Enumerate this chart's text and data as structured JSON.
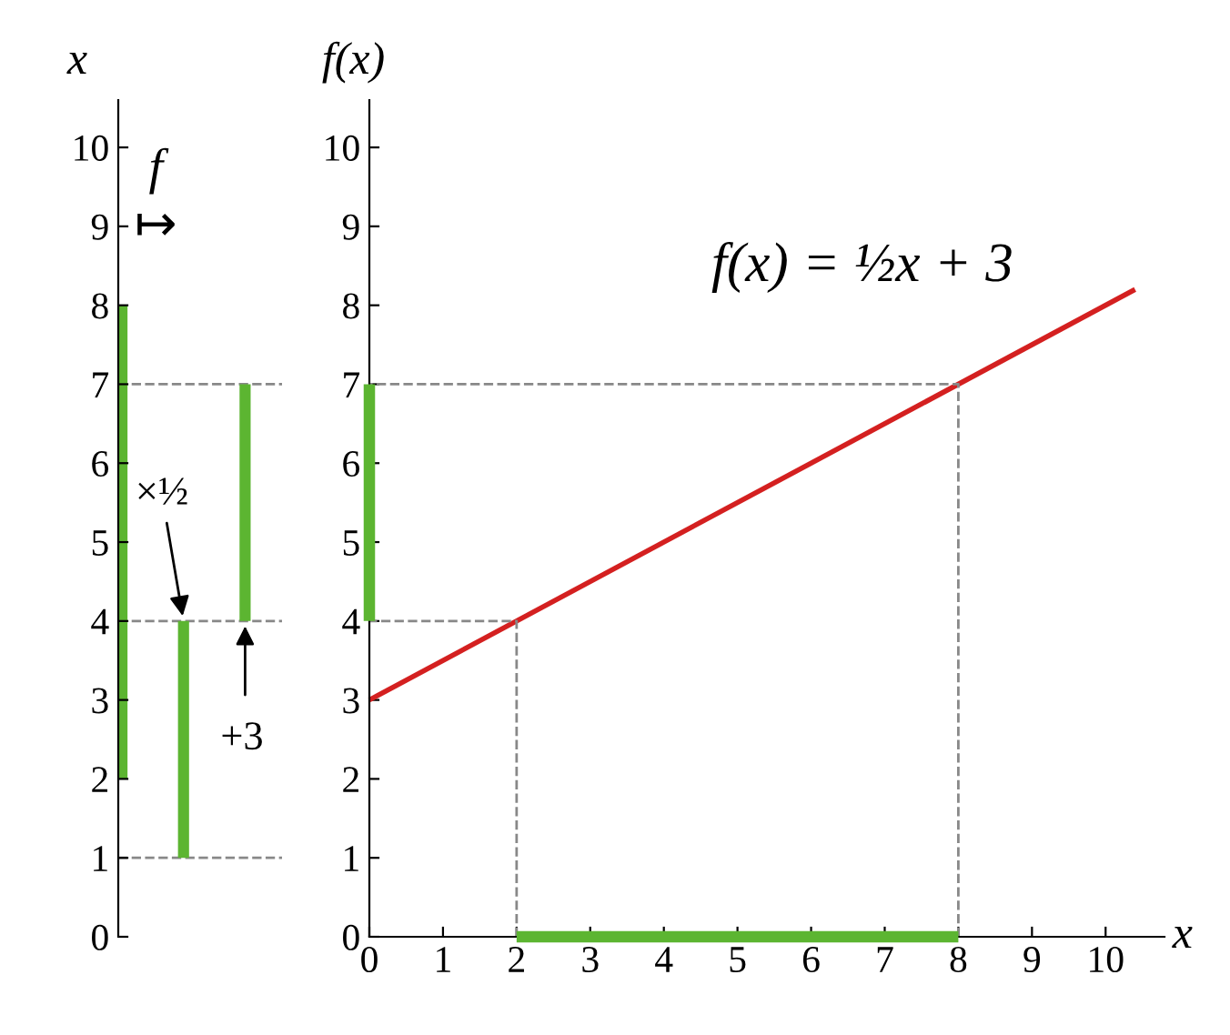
{
  "chart_data": [
    {
      "type": "bar",
      "categories": [
        null,
        null,
        null
      ],
      "base": [
        2,
        1,
        4
      ],
      "values": [
        6,
        3,
        3
      ],
      "color": "#5cb531",
      "ylabel": "x",
      "ylim": [
        0,
        10.6
      ],
      "yticks": [
        0,
        1,
        2,
        3,
        4,
        5,
        6,
        7,
        8,
        9,
        10
      ],
      "tick_labels": "y",
      "grid": false,
      "legend": false,
      "ref_lines": [
        {
          "axis": "y",
          "value": 1,
          "color": "#888888",
          "line_style": "dashed"
        },
        {
          "axis": "y",
          "value": 4,
          "color": "#888888",
          "line_style": "dashed"
        },
        {
          "axis": "y",
          "value": 7,
          "color": "#888888",
          "line_style": "dashed"
        }
      ],
      "annotations": [
        "f",
        "↦",
        "×½",
        "+3"
      ]
    },
    {
      "type": "line",
      "xlabel": "x",
      "ylabel": "f(x)",
      "xlim": [
        0,
        10.8
      ],
      "ylim": [
        0,
        10.6
      ],
      "xticks": [
        0,
        1,
        2,
        3,
        4,
        5,
        6,
        7,
        8,
        9,
        10
      ],
      "yticks": [
        0,
        1,
        2,
        3,
        4,
        5,
        6,
        7,
        8,
        9,
        10
      ],
      "grid": false,
      "legend": false,
      "series": [
        {
          "type": "line",
          "color": "#d42020",
          "line_style": "solid",
          "x": [
            0,
            10.4
          ],
          "values": [
            3,
            8.2
          ]
        },
        {
          "type": "line",
          "color": "#5cb531",
          "line_style": "solid",
          "x": [
            2,
            8
          ],
          "values": [
            0,
            0
          ]
        },
        {
          "type": "line",
          "color": "#5cb531",
          "line_style": "solid",
          "x": [
            0,
            0
          ],
          "values": [
            4,
            7
          ]
        },
        {
          "type": "line",
          "color": "#888888",
          "line_style": "dashed",
          "x": [
            2,
            2,
            0
          ],
          "values": [
            0,
            4,
            4
          ]
        },
        {
          "type": "line",
          "color": "#888888",
          "line_style": "dashed",
          "x": [
            8,
            8,
            0
          ],
          "values": [
            0,
            7,
            7
          ]
        }
      ],
      "annotations": [
        "f(x) = ½x + 3"
      ]
    }
  ]
}
